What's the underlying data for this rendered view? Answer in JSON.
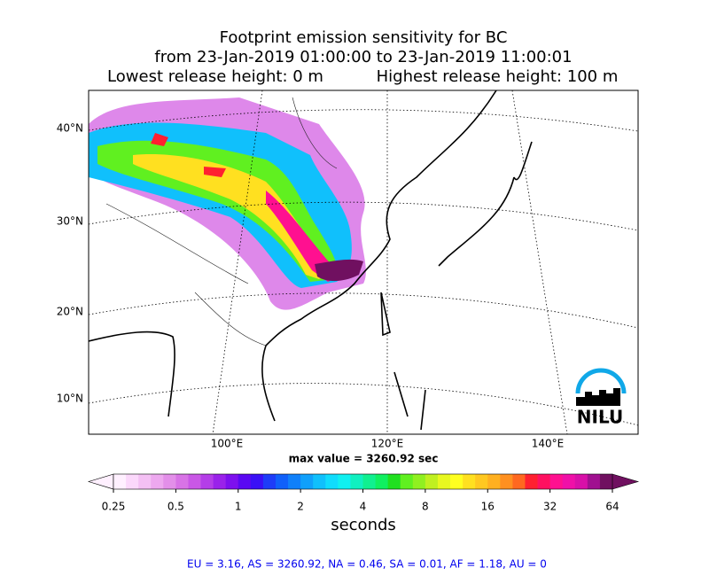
{
  "header": {
    "title_lines": [
      "Footprint emission sensitivity for BC",
      "from 23-Jan-2019 01:00:00 to 23-Jan-2019 11:00:01"
    ],
    "lowest_release": "Lowest release height: 0 m",
    "highest_release": "Highest release height: 100 m"
  },
  "map": {
    "lat_labels": [
      "40°N",
      "30°N",
      "20°N",
      "10°N"
    ],
    "lon_labels": [
      "100°E",
      "120°E",
      "140°E"
    ],
    "max_value_text": "max value = 3260.92 sec",
    "logo": "NILU"
  },
  "colorbar": {
    "ticks": [
      0.25,
      0.5,
      1,
      2,
      4,
      8,
      16,
      32,
      64
    ],
    "label": "seconds",
    "colors": [
      "#fff0ff",
      "#fbd8fb",
      "#f4c0f4",
      "#eda8ef",
      "#e38fe9",
      "#d873e6",
      "#c957e6",
      "#b43de8",
      "#9a22ea",
      "#7d10ee",
      "#5a08f2",
      "#3a10f6",
      "#1e3cf8",
      "#1060fa",
      "#1080fa",
      "#10a0fb",
      "#10c0fc",
      "#10dcfc",
      "#10f0f0",
      "#10f0c0",
      "#10f090",
      "#10f060",
      "#20e020",
      "#60f020",
      "#90f020",
      "#c0f020",
      "#e8f820",
      "#ffff20",
      "#ffe020",
      "#ffc820",
      "#ffb020",
      "#ff9020",
      "#ff6820",
      "#ff2030",
      "#ff1060",
      "#ff1090",
      "#f010a8",
      "#d810a8",
      "#a01090",
      "#701060"
    ]
  },
  "footer": "EU = 3.16,  AS = 3260.92,  NA = 0.46,  SA = 0.01,  AF = 1.18,  AU = 0"
}
